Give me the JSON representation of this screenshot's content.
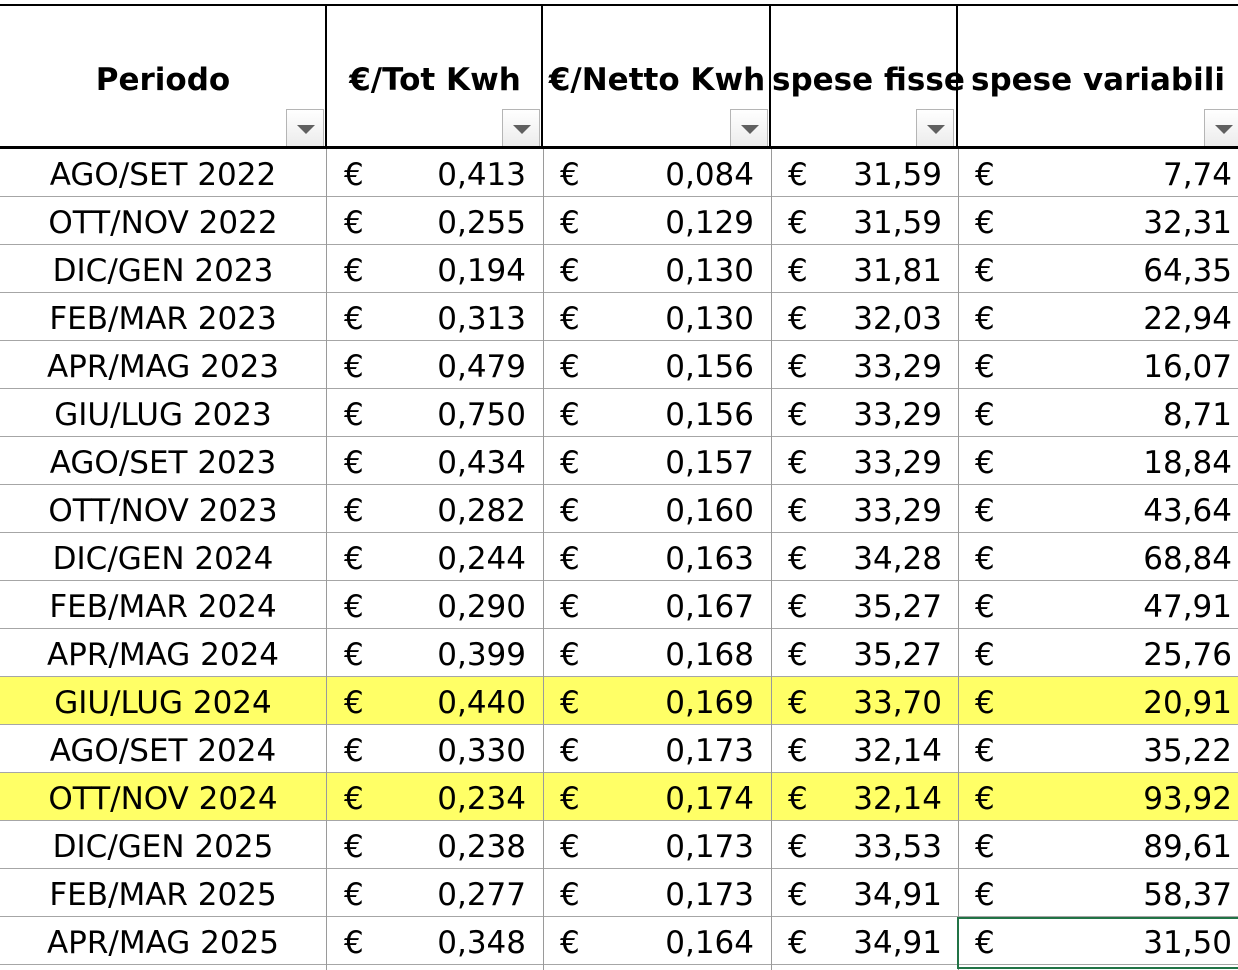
{
  "columns": [
    {
      "key": "periodo",
      "label": "Periodo"
    },
    {
      "key": "tot_kwh",
      "label": "€/Tot Kwh"
    },
    {
      "key": "netto_kwh",
      "label": "€/Netto Kwh"
    },
    {
      "key": "spese_fisse",
      "label": "spese fisse"
    },
    {
      "key": "spese_variabili",
      "label": "spese variabili"
    }
  ],
  "filter_icon": "dropdown-triangle",
  "currency_symbol": "€",
  "highlight_color": "#ffff66",
  "selection_color": "#217346",
  "selected_cell": "spese variabili, APR/MAG 2025",
  "rows": [
    {
      "periodo": "AGO/SET 2022",
      "tot_kwh": "0,413",
      "netto_kwh": "0,084",
      "spese_fisse": "31,59",
      "spese_variabili": "7,74",
      "highlighted": false
    },
    {
      "periodo": "OTT/NOV 2022",
      "tot_kwh": "0,255",
      "netto_kwh": "0,129",
      "spese_fisse": "31,59",
      "spese_variabili": "32,31",
      "highlighted": false
    },
    {
      "periodo": "DIC/GEN 2023",
      "tot_kwh": "0,194",
      "netto_kwh": "0,130",
      "spese_fisse": "31,81",
      "spese_variabili": "64,35",
      "highlighted": false
    },
    {
      "periodo": "FEB/MAR 2023",
      "tot_kwh": "0,313",
      "netto_kwh": "0,130",
      "spese_fisse": "32,03",
      "spese_variabili": "22,94",
      "highlighted": false
    },
    {
      "periodo": "APR/MAG 2023",
      "tot_kwh": "0,479",
      "netto_kwh": "0,156",
      "spese_fisse": "33,29",
      "spese_variabili": "16,07",
      "highlighted": false
    },
    {
      "periodo": "GIU/LUG 2023",
      "tot_kwh": "0,750",
      "netto_kwh": "0,156",
      "spese_fisse": "33,29",
      "spese_variabili": "8,71",
      "highlighted": false
    },
    {
      "periodo": "AGO/SET 2023",
      "tot_kwh": "0,434",
      "netto_kwh": "0,157",
      "spese_fisse": "33,29",
      "spese_variabili": "18,84",
      "highlighted": false
    },
    {
      "periodo": "OTT/NOV 2023",
      "tot_kwh": "0,282",
      "netto_kwh": "0,160",
      "spese_fisse": "33,29",
      "spese_variabili": "43,64",
      "highlighted": false
    },
    {
      "periodo": "DIC/GEN 2024",
      "tot_kwh": "0,244",
      "netto_kwh": "0,163",
      "spese_fisse": "34,28",
      "spese_variabili": "68,84",
      "highlighted": false
    },
    {
      "periodo": "FEB/MAR 2024",
      "tot_kwh": "0,290",
      "netto_kwh": "0,167",
      "spese_fisse": "35,27",
      "spese_variabili": "47,91",
      "highlighted": false
    },
    {
      "periodo": "APR/MAG 2024",
      "tot_kwh": "0,399",
      "netto_kwh": "0,168",
      "spese_fisse": "35,27",
      "spese_variabili": "25,76",
      "highlighted": false
    },
    {
      "periodo": "GIU/LUG 2024",
      "tot_kwh": "0,440",
      "netto_kwh": "0,169",
      "spese_fisse": "33,70",
      "spese_variabili": "20,91",
      "highlighted": true
    },
    {
      "periodo": "AGO/SET 2024",
      "tot_kwh": "0,330",
      "netto_kwh": "0,173",
      "spese_fisse": "32,14",
      "spese_variabili": "35,22",
      "highlighted": false
    },
    {
      "periodo": "OTT/NOV 2024",
      "tot_kwh": "0,234",
      "netto_kwh": "0,174",
      "spese_fisse": "32,14",
      "spese_variabili": "93,92",
      "highlighted": true
    },
    {
      "periodo": "DIC/GEN 2025",
      "tot_kwh": "0,238",
      "netto_kwh": "0,173",
      "spese_fisse": "33,53",
      "spese_variabili": "89,61",
      "highlighted": false
    },
    {
      "periodo": "FEB/MAR 2025",
      "tot_kwh": "0,277",
      "netto_kwh": "0,173",
      "spese_fisse": "34,91",
      "spese_variabili": "58,37",
      "highlighted": false
    },
    {
      "periodo": "APR/MAG 2025",
      "tot_kwh": "0,348",
      "netto_kwh": "0,164",
      "spese_fisse": "34,91",
      "spese_variabili": "31,50",
      "highlighted": false
    }
  ]
}
